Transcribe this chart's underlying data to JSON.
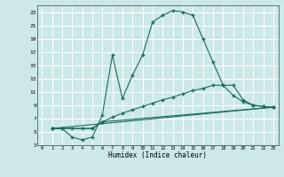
{
  "xlabel": "Humidex (Indice chaleur)",
  "background_color": "#cce8e8",
  "grid_color": "#ffffff",
  "line_color": "#1a6b5a",
  "xlim": [
    -0.5,
    23.5
  ],
  "ylim": [
    3,
    24
  ],
  "xticks": [
    0,
    1,
    2,
    3,
    4,
    5,
    6,
    7,
    8,
    9,
    10,
    11,
    12,
    13,
    14,
    15,
    16,
    17,
    18,
    19,
    20,
    21,
    22,
    23
  ],
  "yticks": [
    3,
    5,
    7,
    9,
    11,
    13,
    15,
    17,
    19,
    21,
    23
  ],
  "line1_x": [
    1,
    2,
    3,
    4,
    5,
    6,
    7,
    8,
    9,
    10,
    11,
    12,
    13,
    14,
    15,
    16,
    17,
    18,
    19,
    20,
    21,
    22,
    23
  ],
  "line1_y": [
    5.5,
    5.5,
    4.2,
    3.8,
    4.2,
    7.5,
    16.5,
    10.0,
    13.5,
    16.5,
    21.5,
    22.5,
    23.2,
    23.0,
    22.5,
    19.0,
    15.5,
    12.0,
    10.5,
    9.5,
    9.0,
    8.8,
    8.7
  ],
  "line2_x": [
    1,
    2,
    3,
    4,
    5,
    6,
    7,
    8,
    9,
    10,
    11,
    12,
    13,
    14,
    15,
    16,
    17,
    18,
    19,
    20,
    21,
    22,
    23
  ],
  "line2_y": [
    5.5,
    5.5,
    5.5,
    5.5,
    5.5,
    6.5,
    7.2,
    7.8,
    8.3,
    8.8,
    9.3,
    9.8,
    10.2,
    10.7,
    11.2,
    11.5,
    12.0,
    12.0,
    12.0,
    9.8,
    9.0,
    8.8,
    8.7
  ],
  "line3_x": [
    1,
    5,
    6,
    23
  ],
  "line3_y": [
    5.5,
    5.5,
    6.5,
    8.7
  ],
  "line4_x": [
    1,
    23
  ],
  "line4_y": [
    5.5,
    8.7
  ]
}
